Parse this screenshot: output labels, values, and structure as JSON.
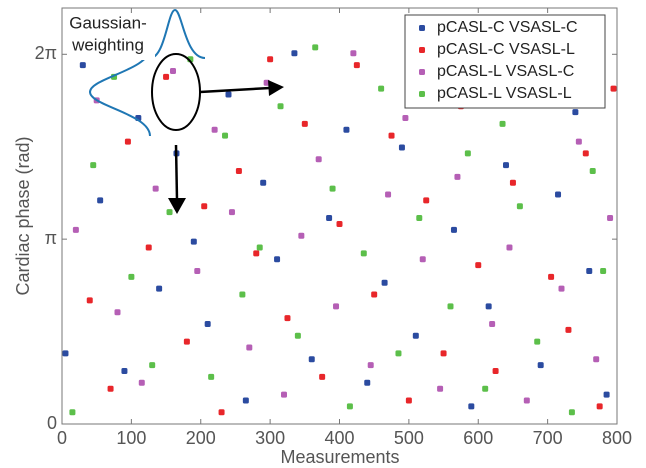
{
  "chart_data": {
    "type": "scatter",
    "x_label": "Measurements",
    "y_label": "Cardiac phase (rad)",
    "annotations": [
      "Gaussian-",
      "weighting"
    ],
    "xlim": [
      0,
      800
    ],
    "xticks": [
      0,
      100,
      200,
      300,
      400,
      500,
      600,
      700,
      800
    ],
    "ylim": [
      0,
      7.07
    ],
    "yticks": [
      0,
      {
        "value": 3.14159,
        "label": "π"
      },
      {
        "value": 6.28319,
        "label": "2π"
      }
    ],
    "legend": "upper right",
    "series": [
      {
        "name": "pCASL-C VSASL-C",
        "color": "#2b4ba0",
        "x": [
          5,
          30,
          55,
          90,
          110,
          140,
          165,
          190,
          210,
          240,
          265,
          290,
          310,
          335,
          360,
          385,
          410,
          440,
          465,
          490,
          510,
          540,
          565,
          590,
          615,
          640,
          665,
          690,
          715,
          740,
          760,
          785
        ],
        "values": [
          1.2,
          6.1,
          3.8,
          0.9,
          5.2,
          2.3,
          4.6,
          3.1,
          1.7,
          5.6,
          0.4,
          4.1,
          2.8,
          6.3,
          1.1,
          3.5,
          5.0,
          0.7,
          2.4,
          4.7,
          1.5,
          5.8,
          3.3,
          0.3,
          2.0,
          4.4,
          6.0,
          1.0,
          3.9,
          5.3,
          2.6,
          0.5
        ]
      },
      {
        "name": "pCASL-C VSASL-L",
        "color": "#e8262a",
        "x": [
          10,
          40,
          70,
          95,
          125,
          150,
          180,
          205,
          230,
          255,
          280,
          300,
          325,
          350,
          375,
          400,
          425,
          450,
          475,
          500,
          525,
          550,
          575,
          600,
          625,
          650,
          680,
          705,
          730,
          755,
          775,
          795
        ],
        "values": [
          6.5,
          2.1,
          0.6,
          4.8,
          3.0,
          5.9,
          1.4,
          3.7,
          0.2,
          4.3,
          2.9,
          6.2,
          1.8,
          5.1,
          0.8,
          3.4,
          6.1,
          2.2,
          4.9,
          0.4,
          3.8,
          1.2,
          5.4,
          2.7,
          0.9,
          4.1,
          6.4,
          2.5,
          1.6,
          4.6,
          0.3,
          5.7
        ]
      },
      {
        "name": "pCASL-L VSASL-C",
        "color": "#b55fb5",
        "x": [
          20,
          50,
          80,
          115,
          135,
          160,
          195,
          220,
          245,
          270,
          295,
          320,
          345,
          370,
          395,
          420,
          445,
          470,
          495,
          520,
          545,
          570,
          595,
          620,
          645,
          670,
          695,
          720,
          745,
          770,
          790
        ],
        "values": [
          3.3,
          5.5,
          1.9,
          0.7,
          4.0,
          6.0,
          2.6,
          5.0,
          3.6,
          1.3,
          5.8,
          0.5,
          3.2,
          4.5,
          2.0,
          6.3,
          1.0,
          3.9,
          5.2,
          2.8,
          0.6,
          4.2,
          6.1,
          1.7,
          3.0,
          0.4,
          5.6,
          2.3,
          4.8,
          1.1,
          3.5
        ]
      },
      {
        "name": "pCASL-L VSASL-L",
        "color": "#5cbf4a",
        "x": [
          15,
          45,
          75,
          100,
          130,
          155,
          185,
          215,
          235,
          260,
          285,
          315,
          340,
          365,
          390,
          415,
          435,
          460,
          485,
          515,
          535,
          560,
          585,
          610,
          635,
          660,
          685,
          710,
          735,
          765,
          780
        ],
        "values": [
          0.2,
          4.4,
          5.9,
          2.5,
          1.0,
          3.6,
          6.2,
          0.8,
          4.9,
          2.2,
          3.0,
          5.4,
          1.5,
          6.4,
          4.0,
          0.3,
          2.9,
          5.7,
          1.2,
          3.5,
          6.0,
          2.0,
          4.6,
          0.6,
          5.1,
          3.7,
          1.4,
          6.2,
          0.2,
          4.3,
          2.6
        ]
      }
    ]
  }
}
